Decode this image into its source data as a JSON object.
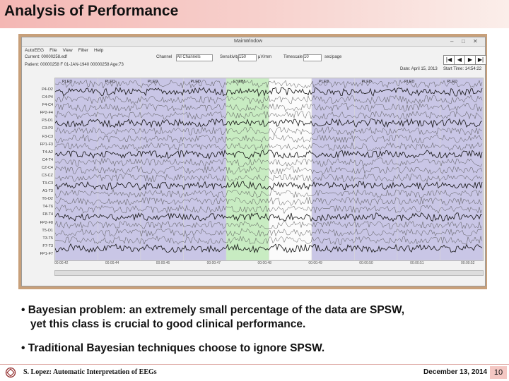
{
  "slide": {
    "title": "Analysis of Performance",
    "bullets": [
      "• Bayesian problem: an extremely small percentage of the data are SPSW,\n   yet this class is crucial to good clinical performance.",
      "• Traditional Bayesian techniques choose to ignore SPSW."
    ],
    "footer_author": "S. Lopez: Automatic Interpretation of EEGs",
    "footer_date": "December 13, 2014",
    "page_number": "10"
  },
  "app": {
    "window_title": "MainWindow",
    "menu": [
      "AutoEEG",
      "File",
      "View",
      "Filter",
      "Help"
    ],
    "patient_line1": "Current: 00000258.edf",
    "patient_line2": "Patient: 00000258 F 01-JAN-1940 00000258 Age:73",
    "channel_label": "Channel",
    "channel_value": "All Channels",
    "sensitivity_label": "Sensitivity",
    "sensitivity_value": "150",
    "sensitivity_unit": "μV/mm",
    "timescale_label": "Timescale",
    "timescale_value": "10",
    "timescale_unit": "sec/page",
    "date_text": "Date: April 15, 2013",
    "start_time_text": "Start Time: 14:54:22",
    "nav_buttons": [
      "|◀",
      "◀",
      "▶",
      "▶|"
    ],
    "channels": [
      "FP1-F7",
      "F7-T3",
      "T3-T5",
      "T5-O1",
      "FP2-F8",
      "F8-T4",
      "T4-T6",
      "T6-O2",
      "A1-T3",
      "T3-C3",
      "C3-CZ",
      "CZ-C4",
      "C4-T4",
      "T4-A2",
      "FP1-F3",
      "F3-C3",
      "C3-P3",
      "P3-O1",
      "FP2-F4",
      "F4-C4",
      "C4-P4",
      "P4-O2"
    ],
    "segments": [
      {
        "label": "PLED",
        "type": "pled"
      },
      {
        "label": "PLED",
        "type": "pled"
      },
      {
        "label": "PLED",
        "type": "pled"
      },
      {
        "label": "PLED",
        "type": "pled"
      },
      {
        "label": "EYEBL",
        "type": "eyebl"
      },
      {
        "label": "",
        "type": "none"
      },
      {
        "label": "PLED",
        "type": "pled"
      },
      {
        "label": "PLED",
        "type": "pled"
      },
      {
        "label": "PLED",
        "type": "pled"
      },
      {
        "label": "PLED",
        "type": "pled"
      }
    ],
    "time_ticks": [
      "00:00:42",
      "00:00:44",
      "00:00:46",
      "00:00:47",
      "00:00:48",
      "00:00:49",
      "00:00:50",
      "00:00:51",
      "00:00:52"
    ],
    "colors": {
      "pled": "#c9c6e6",
      "eyebl": "#c8ecc2"
    }
  }
}
